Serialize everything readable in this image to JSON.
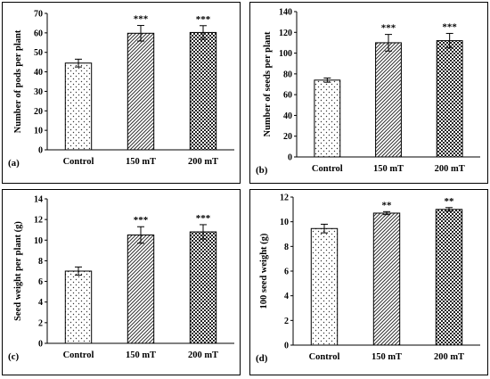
{
  "chart_data": [
    {
      "type": "bar",
      "panel_label": "(a)",
      "ylabel": "Number of pods per plant",
      "xlabel": "",
      "categories": [
        "Control",
        "150 mT",
        "200 mT"
      ],
      "values": [
        44.5,
        59.8,
        60.2
      ],
      "errors": [
        2,
        4,
        3.5
      ],
      "significance": [
        "",
        "***",
        "***"
      ],
      "ylim": [
        0,
        70
      ],
      "yticks": [
        "0",
        "10",
        "20",
        "30",
        "40",
        "50",
        "60",
        "70"
      ],
      "patterns": [
        "dots",
        "diagonal",
        "checker"
      ],
      "grid": false
    },
    {
      "type": "bar",
      "panel_label": "(b)",
      "ylabel": "Number of seeds per plant",
      "xlabel": "",
      "categories": [
        "Control",
        "150 mT",
        "200 mT"
      ],
      "values": [
        74,
        110,
        112
      ],
      "errors": [
        2,
        8,
        7
      ],
      "significance": [
        "",
        "***",
        "***"
      ],
      "ylim": [
        0,
        140
      ],
      "yticks": [
        "0",
        "20",
        "40",
        "60",
        "80",
        "100",
        "120",
        "140"
      ],
      "patterns": [
        "dots",
        "diagonal",
        "checker"
      ],
      "grid": false
    },
    {
      "type": "bar",
      "panel_label": "(c)",
      "ylabel": "Seed weight per plant (g)",
      "xlabel": "",
      "categories": [
        "Control",
        "150 mT",
        "200 mT"
      ],
      "values": [
        7.0,
        10.5,
        10.8
      ],
      "errors": [
        0.4,
        0.8,
        0.7
      ],
      "significance": [
        "",
        "***",
        "***"
      ],
      "ylim": [
        0,
        14
      ],
      "yticks": [
        "0",
        "2",
        "4",
        "6",
        "8",
        "10",
        "12",
        "14"
      ],
      "patterns": [
        "dots",
        "diagonal",
        "checker"
      ],
      "grid": false
    },
    {
      "type": "bar",
      "panel_label": "(d)",
      "ylabel": "100 seed weight (g)",
      "xlabel": "",
      "categories": [
        "Control",
        "150 mT",
        "200 mT"
      ],
      "values": [
        9.45,
        10.7,
        11.0
      ],
      "errors": [
        0.35,
        0.12,
        0.15
      ],
      "significance": [
        "",
        "**",
        "**"
      ],
      "ylim": [
        0,
        12
      ],
      "yticks": [
        "0",
        "2",
        "4",
        "6",
        "8",
        "10",
        "12"
      ],
      "patterns": [
        "dots",
        "diagonal",
        "checker"
      ],
      "grid": false
    }
  ]
}
